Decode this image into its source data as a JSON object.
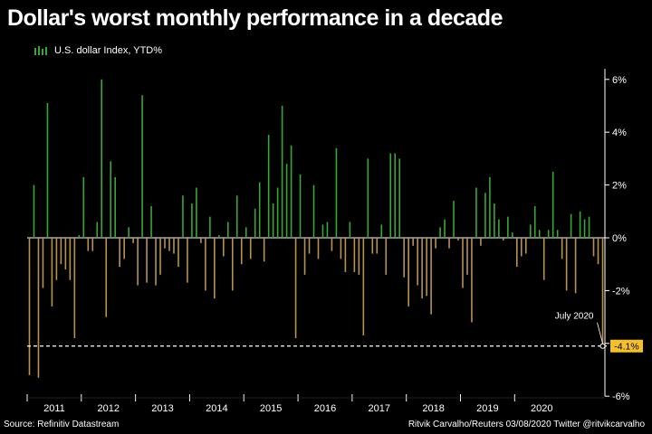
{
  "header": {
    "title": "Dollar's worst monthly performance in a decade",
    "legend_label": "U.S. dollar Index, YTD%"
  },
  "footer": {
    "source": "Source: Refinitiv Datastream",
    "credit": "Ritvik Carvalho/Reuters 03/08/2020 Twitter @ritvikcarvalho"
  },
  "colors": {
    "positive": "#3aa635",
    "negative": "#b8934f",
    "background": "#000000",
    "highlight": "#f5c02c"
  },
  "chart_data": {
    "type": "bar",
    "title": "Dollar's worst monthly performance in a decade",
    "series_name": "U.S. dollar Index, YTD%",
    "ylim": [
      -6,
      6
    ],
    "yticks": [
      "6%",
      "4%",
      "2%",
      "0%",
      "-2%",
      "-4%",
      "-6%"
    ],
    "ytick_values": [
      6,
      4,
      2,
      0,
      -2,
      -4,
      -6
    ],
    "year_labels": [
      "2011",
      "2012",
      "2013",
      "2014",
      "2015",
      "2016",
      "2017",
      "2018",
      "2019",
      "2020"
    ],
    "annotation": {
      "label": "July 2020",
      "value_label": "-4.1%",
      "value": -4.1
    },
    "values": [
      -5.2,
      2.0,
      -5.3,
      -1.9,
      5.1,
      -2.6,
      -1.6,
      -1.0,
      -1.2,
      -1.6,
      -3.8,
      0.1,
      2.3,
      -0.5,
      -0.5,
      0.6,
      6.0,
      -3.0,
      2.9,
      2.3,
      -1.1,
      -0.8,
      0.4,
      -0.2,
      -1.8,
      5.4,
      -1.7,
      1.2,
      -1.8,
      -1.4,
      -0.4,
      -0.5,
      -0.6,
      -1.1,
      1.6,
      -1.7,
      1.3,
      1.9,
      -0.2,
      -2.0,
      0.8,
      -2.3,
      0.1,
      -0.7,
      0.6,
      -2.0,
      1.6,
      -1.0,
      0.4,
      -0.8,
      1.1,
      2.1,
      -0.9,
      3.9,
      1.3,
      1.9,
      5.0,
      2.8,
      3.5,
      -3.8,
      2.4,
      -1.4,
      -0.6,
      2.0,
      -0.8,
      0.5,
      0.6,
      -0.5,
      3.4,
      -0.8,
      -1.3,
      0.6,
      -1.3,
      -1.4,
      -3.7,
      3.0,
      -0.6,
      -0.6,
      0.5,
      -1.4,
      3.2,
      3.2,
      3.0,
      -1.5,
      -2.6,
      -0.3,
      -1.8,
      -2.3,
      -2.2,
      -2.9,
      -0.4,
      0.4,
      0.7,
      -0.4,
      1.4,
      -0.1,
      -1.9,
      -1.4,
      -3.2,
      1.9,
      -0.3,
      1.7,
      2.3,
      1.3,
      0.7,
      -0.1,
      0.8,
      0.2,
      -1.1,
      -0.7,
      -0.6,
      0.5,
      1.2,
      0.3,
      -1.6,
      0.3,
      2.5,
      0.3,
      -0.8,
      -2.0,
      0.9,
      -2.1,
      1.0,
      0.7,
      0.8,
      -0.7,
      -1.0,
      -4.1
    ]
  }
}
